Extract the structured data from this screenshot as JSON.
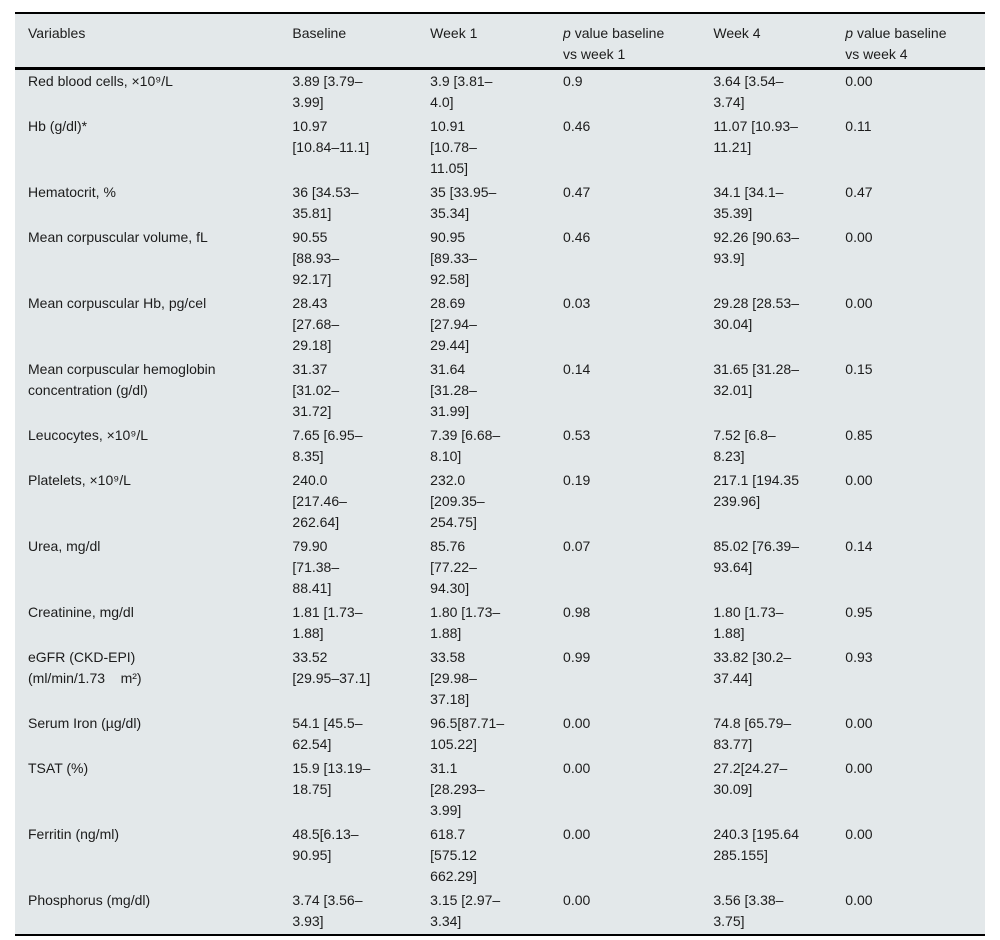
{
  "colors": {
    "table_background": "#e3e8ea",
    "text": "#1c1c1c",
    "rule": "#000000",
    "page_background": "#ffffff"
  },
  "table": {
    "headers": [
      {
        "label": "Variables"
      },
      {
        "label": "Baseline"
      },
      {
        "label": "Week 1"
      },
      {
        "italic": "p",
        "label": " value baseline\nvs week 1"
      },
      {
        "label": "Week 4"
      },
      {
        "italic": "p",
        "label": " value baseline\nvs week 4"
      }
    ],
    "rows": [
      {
        "cells": [
          "Red blood cells, ×10⁹/L",
          "3.89 [3.79–\n3.99]",
          "3.9 [3.81–\n4.0]",
          "0.9",
          "3.64 [3.54–\n3.74]",
          "0.00"
        ]
      },
      {
        "cells": [
          "Hb (g/dl)*",
          "10.97\n[10.84–11.1]",
          "10.91\n[10.78–\n11.05]",
          "0.46",
          "11.07 [10.93–\n11.21]",
          "0.11"
        ]
      },
      {
        "cells": [
          "Hematocrit, %",
          "36 [34.53–\n35.81]",
          "35 [33.95–\n35.34]",
          "0.47",
          "34.1 [34.1–\n35.39]",
          "0.47"
        ]
      },
      {
        "cells": [
          "Mean corpuscular volume, fL",
          "90.55\n[88.93–\n92.17]",
          "90.95\n[89.33–\n92.58]",
          "0.46",
          "92.26 [90.63–\n93.9]",
          "0.00"
        ]
      },
      {
        "cells": [
          "Mean corpuscular Hb, pg/cel",
          "28.43\n[27.68–\n29.18]",
          "28.69\n[27.94–\n29.44]",
          "0.03",
          "29.28 [28.53–\n30.04]",
          "0.00"
        ]
      },
      {
        "cells": [
          "Mean corpuscular hemoglobin\nconcentration (g/dl)",
          "31.37\n[31.02–\n31.72]",
          "31.64\n[31.28–\n31.99]",
          "0.14",
          "31.65 [31.28–\n32.01]",
          "0.15"
        ]
      },
      {
        "cells": [
          "Leucocytes, ×10⁹/L",
          "7.65 [6.95–\n8.35]",
          "7.39 [6.68–\n8.10]",
          "0.53",
          "7.52 [6.8–\n8.23]",
          "0.85"
        ]
      },
      {
        "cells": [
          "Platelets, ×10⁹/L",
          "240.0\n[217.46–\n262.64]",
          "232.0\n[209.35–\n254.75]",
          "0.19",
          "217.1 [194.35\n239.96]",
          "0.00"
        ]
      },
      {
        "cells": [
          "Urea, mg/dl",
          "79.90\n[71.38–\n88.41]",
          "85.76\n[77.22–\n94.30]",
          "0.07",
          "85.02 [76.39–\n93.64]",
          "0.14"
        ]
      },
      {
        "cells": [
          "Creatinine, mg/dl",
          "1.81 [1.73–\n1.88]",
          "1.80 [1.73–\n1.88]",
          "0.98",
          "1.80 [1.73–\n1.88]",
          "0.95"
        ]
      },
      {
        "cells": [
          "eGFR (CKD-EPI)\n(ml/min/1.73    m²)",
          "33.52\n[29.95–37.1]",
          "33.58\n[29.98–\n37.18]",
          "0.99",
          "33.82 [30.2–\n37.44]",
          "0.93"
        ]
      },
      {
        "cells": [
          "Serum Iron (µg/dl)",
          "54.1 [45.5–\n62.54]",
          "96.5[87.71–\n105.22]",
          "0.00",
          "74.8 [65.79–\n83.77]",
          "0.00"
        ]
      },
      {
        "cells": [
          "TSAT (%)",
          "15.9 [13.19–\n18.75]",
          "31.1\n[28.293–\n3.99]",
          "0.00",
          "27.2[24.27–\n30.09]",
          "0.00"
        ]
      },
      {
        "cells": [
          "Ferritin (ng/ml)",
          "48.5[6.13–\n90.95]",
          "618.7\n[575.12\n662.29]",
          "0.00",
          "240.3 [195.64\n285.155]",
          "0.00"
        ]
      },
      {
        "cells": [
          "Phosphorus (mg/dl)",
          "3.74 [3.56–\n3.93]",
          "3.15 [2.97–\n3.34]",
          "0.00",
          "3.56 [3.38–\n3.75]",
          "0.00"
        ]
      }
    ]
  }
}
